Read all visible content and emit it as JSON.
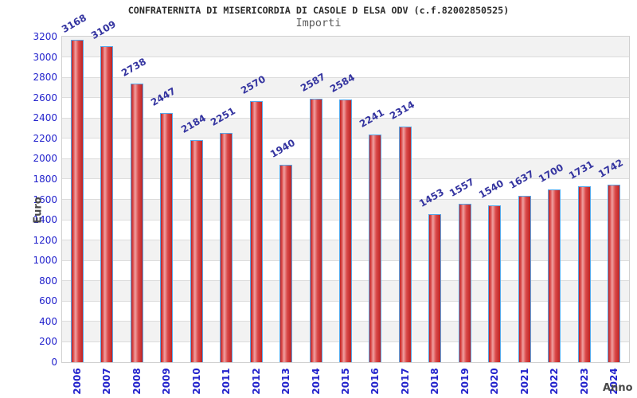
{
  "header": {
    "title": "CONFRATERNITA DI MISERICORDIA DI CASOLE D ELSA ODV (c.f.82002850525)",
    "subtitle": "Importi"
  },
  "chart_data": {
    "type": "bar",
    "title": "CONFRATERNITA DI MISERICORDIA DI CASOLE D ELSA ODV (c.f.82002850525)",
    "subtitle": "Importi",
    "xlabel": "Anno",
    "ylabel": "Euro",
    "categories": [
      "2006",
      "2007",
      "2008",
      "2009",
      "2010",
      "2011",
      "2012",
      "2013",
      "2014",
      "2015",
      "2016",
      "2017",
      "2018",
      "2019",
      "2020",
      "2021",
      "2022",
      "2023",
      "2024"
    ],
    "values": [
      3168,
      3109,
      2738,
      2447,
      2184,
      2251,
      2570,
      1940,
      2587,
      2584,
      2241,
      2314,
      1453,
      1557,
      1540,
      1637,
      1700,
      1731,
      1742
    ],
    "ylim": [
      0,
      3200
    ],
    "ytick_step": 200,
    "grid": true,
    "legend": "none",
    "band_fill_alternate": [
      "#f2f2f2",
      "#ffffff"
    ],
    "colors": {
      "bar_dark": "#bd2424",
      "bar_mid": "#d94848",
      "bar_highlight": "#f0a0a0",
      "bar_border": "#57a7e8",
      "axis_text": "#2222cc",
      "value_label": "#3434a0",
      "title_text": "#2b2b2b",
      "gridline": "#dcdcdc"
    }
  }
}
